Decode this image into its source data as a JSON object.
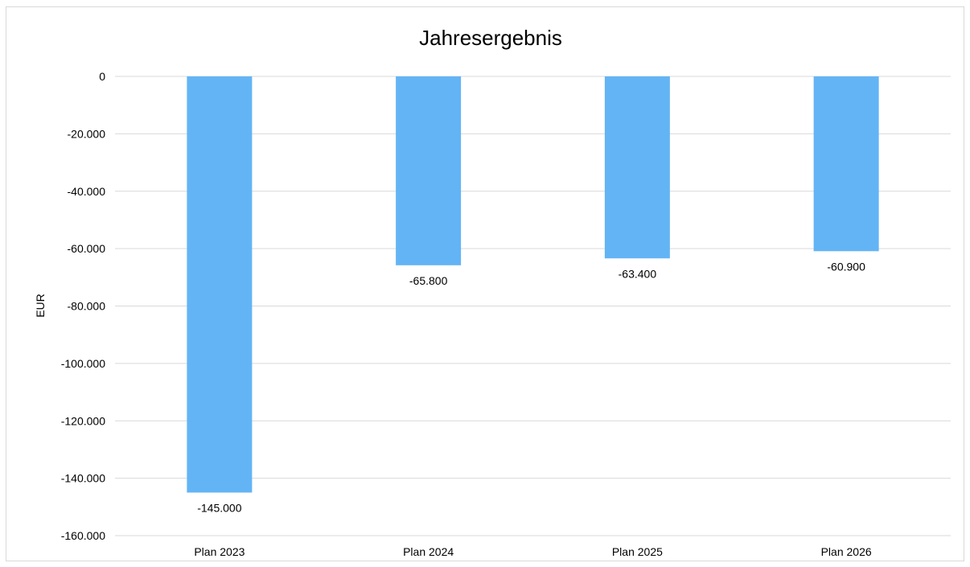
{
  "chart_data": {
    "type": "bar",
    "title": "Jahresergebnis",
    "xlabel": "",
    "ylabel": "EUR",
    "categories": [
      "Plan 2023",
      "Plan 2024",
      "Plan 2025",
      "Plan 2026"
    ],
    "values": [
      -145000,
      -65800,
      -63400,
      -60900
    ],
    "data_labels": [
      "-145.000",
      "-65.800",
      "-63.400",
      "-60.900"
    ],
    "ylim": [
      -160000,
      0
    ],
    "yticks": [
      0,
      -20000,
      -40000,
      -60000,
      -80000,
      -100000,
      -120000,
      -140000,
      -160000
    ],
    "ytick_labels": [
      "0",
      "-20.000",
      "-40.000",
      "-60.000",
      "-80.000",
      "-100.000",
      "-120.000",
      "-140.000",
      "-160.000"
    ],
    "grid": true,
    "legend": "none",
    "bar_color": "#63b4f5",
    "grid_color": "#d9d9d9"
  }
}
